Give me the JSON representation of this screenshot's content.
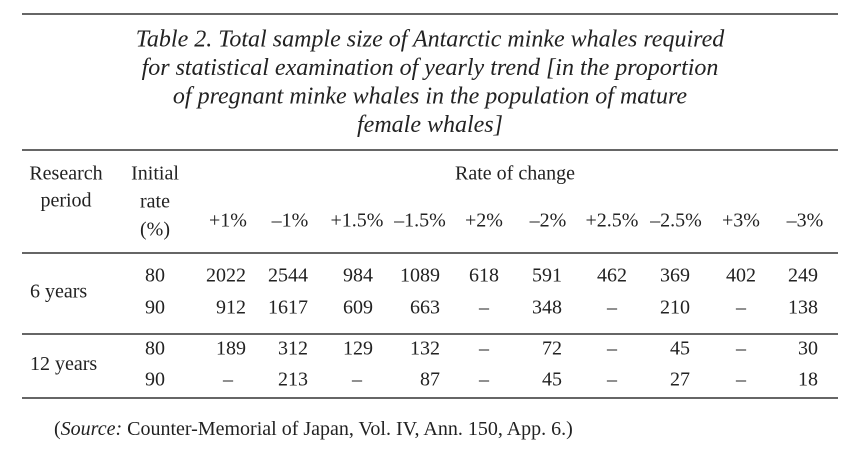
{
  "table": {
    "title": [
      "Table 2. Total sample size of Antarctic minke whales required",
      "for statistical examination of yearly trend [in the proportion",
      "of pregnant minke whales in the population of mature",
      "female whales]"
    ],
    "period_header": [
      "Research",
      "period"
    ],
    "rate_header": [
      "Initial",
      "rate",
      "(%)"
    ],
    "group_header": "Rate of change",
    "columns": [
      "+1%",
      "–1%",
      "+1.5%",
      "–1.5%",
      "+2%",
      "–2%",
      "+2.5%",
      "–2.5%",
      "+3%",
      "–3%"
    ],
    "groups": [
      {
        "period": "6 years",
        "rows": [
          {
            "rate": 80,
            "values": [
              2022,
              2544,
              984,
              1089,
              618,
              591,
              462,
              369,
              402,
              249
            ]
          },
          {
            "rate": 90,
            "values": [
              912,
              1617,
              609,
              663,
              "–",
              348,
              "–",
              210,
              "–",
              138
            ]
          }
        ]
      },
      {
        "period": "12 years",
        "rows": [
          {
            "rate": 80,
            "values": [
              189,
              312,
              129,
              132,
              "–",
              72,
              "–",
              45,
              "–",
              30
            ]
          },
          {
            "rate": 90,
            "values": [
              "–",
              213,
              "–",
              87,
              "–",
              45,
              "–",
              27,
              "–",
              18
            ]
          }
        ]
      }
    ],
    "source": {
      "open": "(",
      "label": "Source:",
      "text": " Counter-Memorial of Japan, Vol. IV, Ann. 150, App. 6.)"
    }
  }
}
